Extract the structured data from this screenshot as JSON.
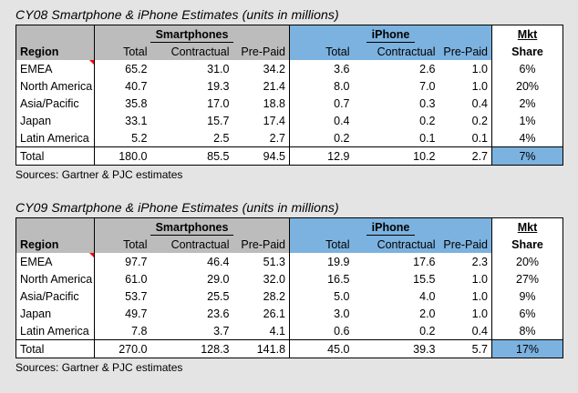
{
  "tables": [
    {
      "title": "CY08 Smartphone & iPhone Estimates (units in millions)",
      "smartphones_label": "Smartphones",
      "iphone_label": "iPhone",
      "mkt_label": "Mkt",
      "share_label": "Share",
      "headers": {
        "region": "Region",
        "sp_total": "Total",
        "sp_contractual": "Contractual",
        "sp_prepaid": "Pre-Paid",
        "ip_total": "Total",
        "ip_contractual": "Contractual",
        "ip_prepaid": "Pre-Paid"
      },
      "rows": [
        {
          "region": "EMEA",
          "sp_total": "65.2",
          "sp_contractual": "31.0",
          "sp_prepaid": "34.2",
          "ip_total": "3.6",
          "ip_contractual": "2.6",
          "ip_prepaid": "1.0",
          "share": "6%"
        },
        {
          "region": "North America",
          "sp_total": "40.7",
          "sp_contractual": "19.3",
          "sp_prepaid": "21.4",
          "ip_total": "8.0",
          "ip_contractual": "7.0",
          "ip_prepaid": "1.0",
          "share": "20%"
        },
        {
          "region": "Asia/Pacific",
          "sp_total": "35.8",
          "sp_contractual": "17.0",
          "sp_prepaid": "18.8",
          "ip_total": "0.7",
          "ip_contractual": "0.3",
          "ip_prepaid": "0.4",
          "share": "2%"
        },
        {
          "region": "Japan",
          "sp_total": "33.1",
          "sp_contractual": "15.7",
          "sp_prepaid": "17.4",
          "ip_total": "0.4",
          "ip_contractual": "0.2",
          "ip_prepaid": "0.2",
          "share": "1%"
        },
        {
          "region": "Latin America",
          "sp_total": "5.2",
          "sp_contractual": "2.5",
          "sp_prepaid": "2.7",
          "ip_total": "0.2",
          "ip_contractual": "0.1",
          "ip_prepaid": "0.1",
          "share": "4%"
        }
      ],
      "total": {
        "region": "Total",
        "sp_total": "180.0",
        "sp_contractual": "85.5",
        "sp_prepaid": "94.5",
        "ip_total": "12.9",
        "ip_contractual": "10.2",
        "ip_prepaid": "2.7",
        "share": "7%"
      },
      "source": "Sources: Gartner & PJC estimates"
    },
    {
      "title": "CY09 Smartphone & iPhone Estimates (units in millions)",
      "smartphones_label": "Smartphones",
      "iphone_label": "iPhone",
      "mkt_label": "Mkt",
      "share_label": "Share",
      "headers": {
        "region": "Region",
        "sp_total": "Total",
        "sp_contractual": "Contractual",
        "sp_prepaid": "Pre-Paid",
        "ip_total": "Total",
        "ip_contractual": "Contractual",
        "ip_prepaid": "Pre-Paid"
      },
      "rows": [
        {
          "region": "EMEA",
          "sp_total": "97.7",
          "sp_contractual": "46.4",
          "sp_prepaid": "51.3",
          "ip_total": "19.9",
          "ip_contractual": "17.6",
          "ip_prepaid": "2.3",
          "share": "20%"
        },
        {
          "region": "North America",
          "sp_total": "61.0",
          "sp_contractual": "29.0",
          "sp_prepaid": "32.0",
          "ip_total": "16.5",
          "ip_contractual": "15.5",
          "ip_prepaid": "1.0",
          "share": "27%"
        },
        {
          "region": "Asia/Pacific",
          "sp_total": "53.7",
          "sp_contractual": "25.5",
          "sp_prepaid": "28.2",
          "ip_total": "5.0",
          "ip_contractual": "4.0",
          "ip_prepaid": "1.0",
          "share": "9%"
        },
        {
          "region": "Japan",
          "sp_total": "49.7",
          "sp_contractual": "23.6",
          "sp_prepaid": "26.1",
          "ip_total": "3.0",
          "ip_contractual": "2.0",
          "ip_prepaid": "1.0",
          "share": "6%"
        },
        {
          "region": "Latin America",
          "sp_total": "7.8",
          "sp_contractual": "3.7",
          "sp_prepaid": "4.1",
          "ip_total": "0.6",
          "ip_contractual": "0.2",
          "ip_prepaid": "0.4",
          "share": "8%"
        }
      ],
      "total": {
        "region": "Total",
        "sp_total": "270.0",
        "sp_contractual": "128.3",
        "sp_prepaid": "141.8",
        "ip_total": "45.0",
        "ip_contractual": "39.3",
        "ip_prepaid": "5.7",
        "share": "17%"
      },
      "source": "Sources: Gartner & PJC estimates"
    }
  ],
  "colors": {
    "smartphones_bg": "#bcbcbc",
    "iphone_bg": "#7cb2df",
    "comment_marker": "#ff0000"
  }
}
